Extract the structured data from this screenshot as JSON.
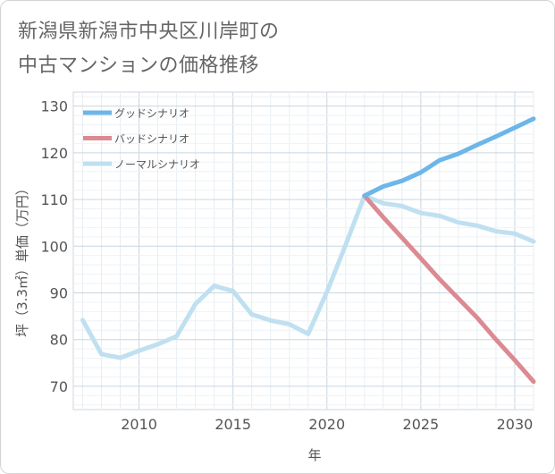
{
  "title_line1": "新潟県新潟市中央区川岸町の",
  "title_line2": "中古マンションの価格推移",
  "chart_data": {
    "type": "line",
    "xlabel": "年",
    "ylabel": "坪（3.3㎡）単価（万円）",
    "xlim": [
      2006.5,
      2031
    ],
    "ylim": [
      65,
      133
    ],
    "x_ticks": [
      2010,
      2015,
      2020,
      2025,
      2030
    ],
    "y_ticks": [
      70,
      80,
      90,
      100,
      110,
      120,
      130
    ],
    "grid": true,
    "legend_position": "top-left",
    "series": [
      {
        "name": "グッドシナリオ",
        "color": "#6cb6ea",
        "points": [
          [
            2022,
            110.8
          ],
          [
            2023,
            112.8
          ],
          [
            2024,
            114.0
          ],
          [
            2025,
            115.8
          ],
          [
            2026,
            118.4
          ],
          [
            2027,
            119.8
          ],
          [
            2028,
            121.7
          ],
          [
            2029,
            123.5
          ],
          [
            2030,
            125.4
          ],
          [
            2031,
            127.3
          ]
        ]
      },
      {
        "name": "バッドシナリオ",
        "color": "#dc8a92",
        "points": [
          [
            2022,
            110.8
          ],
          [
            2023,
            106.2
          ],
          [
            2024,
            101.8
          ],
          [
            2025,
            97.4
          ],
          [
            2026,
            92.9
          ],
          [
            2027,
            88.8
          ],
          [
            2028,
            84.7
          ],
          [
            2029,
            80.0
          ],
          [
            2030,
            75.6
          ],
          [
            2031,
            71.0
          ]
        ]
      },
      {
        "name": "ノーマルシナリオ",
        "color": "#bfe0f0",
        "points": [
          [
            2007,
            84.2
          ],
          [
            2008,
            76.9
          ],
          [
            2009,
            76.1
          ],
          [
            2010,
            77.6
          ],
          [
            2011,
            79.0
          ],
          [
            2012,
            80.7
          ],
          [
            2013,
            87.6
          ],
          [
            2014,
            91.5
          ],
          [
            2015,
            90.4
          ],
          [
            2016,
            85.4
          ],
          [
            2017,
            84.1
          ],
          [
            2018,
            83.3
          ],
          [
            2019,
            81.2
          ],
          [
            2020,
            90.2
          ],
          [
            2021,
            100.3
          ],
          [
            2022,
            110.8
          ],
          [
            2023,
            109.2
          ],
          [
            2024,
            108.6
          ],
          [
            2025,
            107.1
          ],
          [
            2026,
            106.5
          ],
          [
            2027,
            105.1
          ],
          [
            2028,
            104.4
          ],
          [
            2029,
            103.2
          ],
          [
            2030,
            102.7
          ],
          [
            2031,
            101.0
          ]
        ]
      }
    ]
  }
}
